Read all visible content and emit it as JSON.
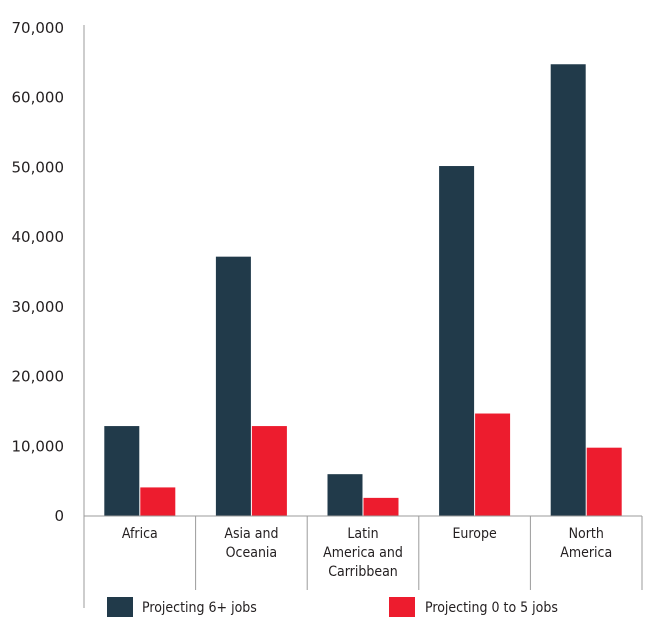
{
  "chart_data": {
    "type": "bar",
    "categories": [
      [
        "Africa"
      ],
      [
        "Asia and",
        "Oceania"
      ],
      [
        "Latin",
        "America and",
        "Carribbean"
      ],
      [
        "Europe"
      ],
      [
        "North",
        "America"
      ]
    ],
    "series": [
      {
        "name": "Projecting 6+ jobs",
        "color": "#213a4a",
        "values": [
          12900,
          37200,
          6000,
          50200,
          64800
        ]
      },
      {
        "name": "Projecting 0 to 5 jobs",
        "color": "#ed1c2e",
        "values": [
          4100,
          12900,
          2600,
          14700,
          9800
        ]
      }
    ],
    "y_ticks": [
      "0",
      "10,000",
      "20,000",
      "30,000",
      "40,000",
      "50,000",
      "60,000",
      "70,000"
    ],
    "ylim": [
      0,
      70000
    ],
    "grid": false,
    "legend": "bottom"
  }
}
